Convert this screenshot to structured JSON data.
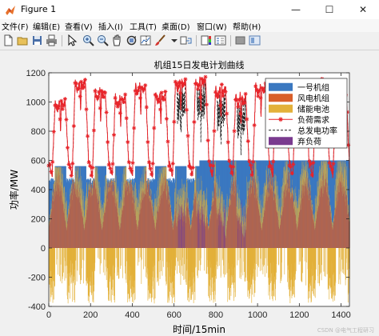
{
  "window": {
    "title": "Figure 1",
    "min": "—",
    "max": "☐",
    "close": "✕"
  },
  "menu": [
    "文件(F)",
    "编辑(E)",
    "查看(V)",
    "插入(I)",
    "工具(T)",
    "桌面(D)",
    "窗口(W)",
    "帮助(H)"
  ],
  "toolbar_icons": [
    "new-figure-icon",
    "open-file-icon",
    "save-icon",
    "print-icon",
    "select-arrow-icon",
    "zoom-in-icon",
    "zoom-out-icon",
    "pan-hand-icon",
    "rotate-3d-icon",
    "data-cursor-icon",
    "brush-icon",
    "brush-menu-icon",
    "link-plot-icon",
    "insert-colorbar-icon",
    "insert-legend-icon",
    "hide-plot-tools-icon",
    "show-plot-tools-icon"
  ],
  "colors": {
    "unit1": "#3b78c0",
    "wind": "#d95f2a",
    "storage": "#e3b13a",
    "curtail": "#7a3b8f",
    "load": "#e8242a",
    "total": "#222222",
    "axes_bg": "#ffffff",
    "figure_bg": "#f0f0f0"
  },
  "chart_data": {
    "type": "area",
    "title": "机组15日发电计划曲线",
    "xlabel": "时间/15min",
    "ylabel": "功率/MW",
    "xlim": [
      0,
      1440
    ],
    "ylim": [
      -400,
      1200
    ],
    "xticks": [
      "0",
      "200",
      "400",
      "600",
      "800",
      "1000",
      "1200",
      "1400"
    ],
    "yticks": [
      "-400",
      "-200",
      "0",
      "200",
      "400",
      "600",
      "800",
      "1000",
      "1200"
    ],
    "grid": false,
    "legend_position": "top-right",
    "series": [
      {
        "name": "一号机组",
        "kind": "bar",
        "description_values": {
          "level_high": 600,
          "level_low": 380
        }
      },
      {
        "name": "风电机组",
        "kind": "bar"
      },
      {
        "name": "储能电池",
        "kind": "bar"
      },
      {
        "name": "负荷需求",
        "kind": "line-marker"
      },
      {
        "name": "总发电功率",
        "kind": "dashed-line"
      },
      {
        "name": "弃负荷",
        "kind": "bar"
      }
    ],
    "load_daily_profile": {
      "days": 15,
      "samples_per_day": 96,
      "valley": 540,
      "peak": 1110,
      "day_peaks": [
        1010,
        1150,
        1080,
        1040,
        1120,
        1060,
        1150,
        1160,
        1100,
        1050,
        1120,
        1100,
        1060,
        1150,
        1080
      ]
    }
  },
  "watermark": "CSDN @电气工程研习"
}
